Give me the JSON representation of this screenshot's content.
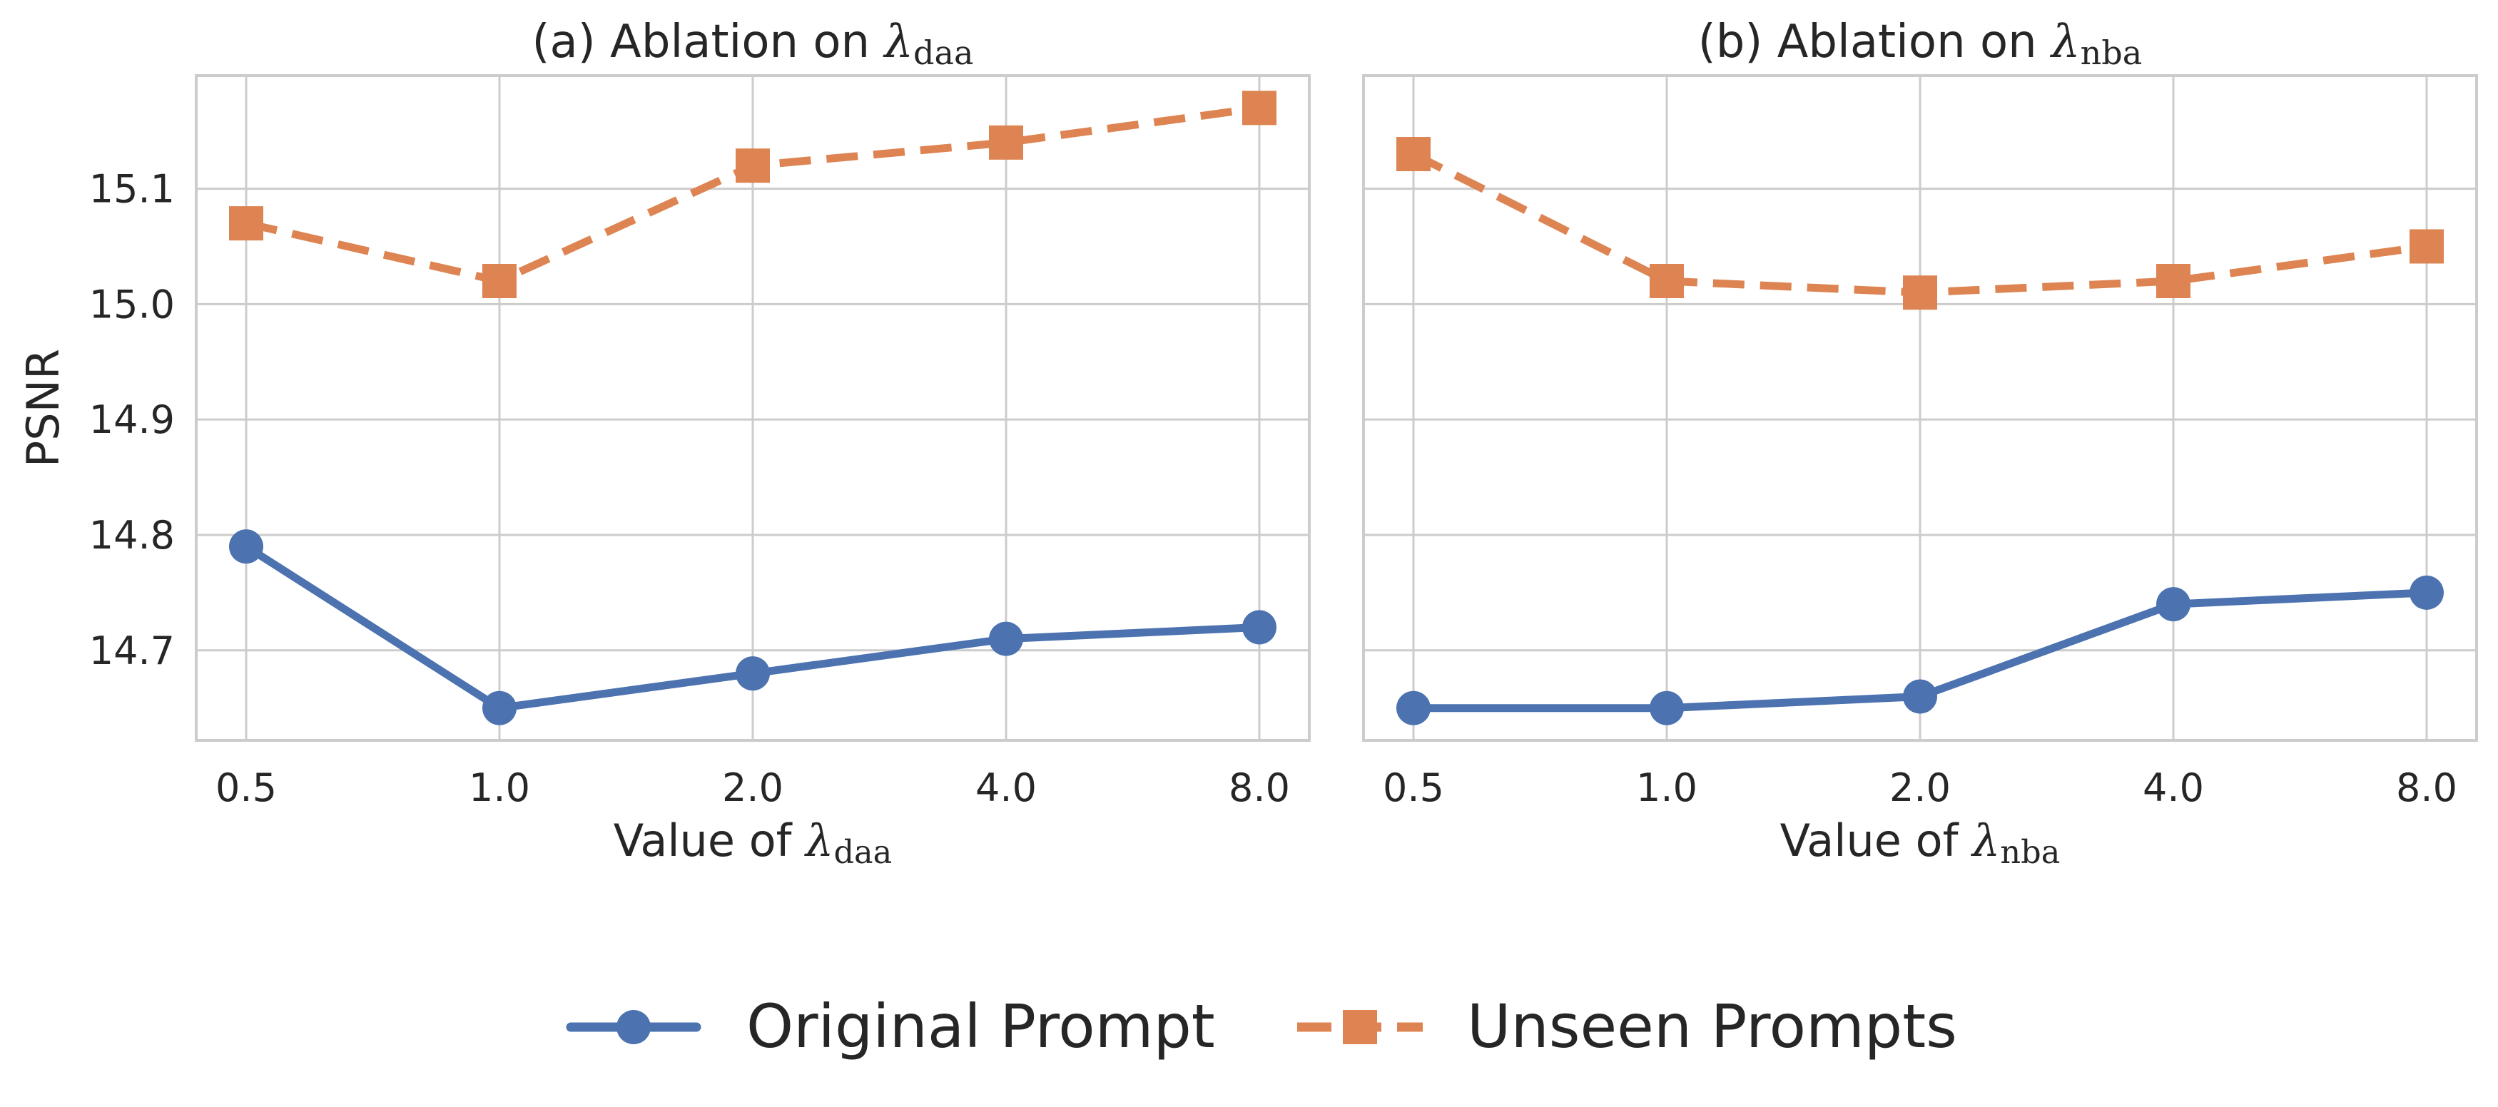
{
  "chart_data": [
    {
      "type": "line",
      "title": "(a) Ablation on ",
      "title_symbol": "λ",
      "title_sub": "daa",
      "xlabel": "Value of ",
      "xlabel_symbol": "λ",
      "xlabel_sub": "daa",
      "ylabel": "PSNR",
      "categories": [
        "0.5",
        "1.0",
        "2.0",
        "4.0",
        "8.0"
      ],
      "yticks": [
        "14.7",
        "14.8",
        "14.9",
        "15.0",
        "15.1"
      ],
      "ylim": [
        14.622,
        15.198
      ],
      "grid": true,
      "series": [
        {
          "name": "Original Prompt",
          "values": [
            14.79,
            14.65,
            14.68,
            14.71,
            14.72
          ],
          "color": "#4c72b0",
          "marker": "circle",
          "linestyle": "solid"
        },
        {
          "name": "Unseen Prompts",
          "values": [
            15.07,
            15.02,
            15.12,
            15.14,
            15.17
          ],
          "color": "#dd8452",
          "marker": "square",
          "linestyle": "dashed"
        }
      ]
    },
    {
      "type": "line",
      "title": "(b) Ablation on ",
      "title_symbol": "λ",
      "title_sub": "nba",
      "xlabel": "Value of ",
      "xlabel_symbol": "λ",
      "xlabel_sub": "nba",
      "ylabel": "",
      "categories": [
        "0.5",
        "1.0",
        "2.0",
        "4.0",
        "8.0"
      ],
      "ylim": [
        14.622,
        15.198
      ],
      "grid": true,
      "shared_y": true,
      "series": [
        {
          "name": "Original Prompt",
          "values": [
            14.65,
            14.65,
            14.66,
            14.74,
            14.75
          ],
          "color": "#4c72b0",
          "marker": "circle",
          "linestyle": "solid"
        },
        {
          "name": "Unseen Prompts",
          "values": [
            15.13,
            15.02,
            15.01,
            15.02,
            15.05
          ],
          "color": "#dd8452",
          "marker": "square",
          "linestyle": "dashed"
        }
      ]
    }
  ],
  "legend": {
    "placement": "bottom-center",
    "items": [
      {
        "label": "Original Prompt",
        "color": "#4c72b0",
        "marker": "circle",
        "linestyle": "solid"
      },
      {
        "label": "Unseen Prompts",
        "color": "#dd8452",
        "marker": "square",
        "linestyle": "dashed"
      }
    ]
  }
}
